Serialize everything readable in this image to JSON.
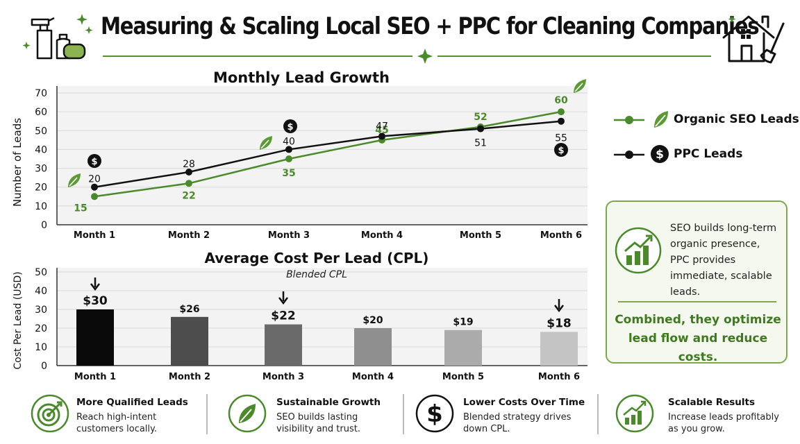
{
  "header": {
    "title": "Measuring & Scaling Local SEO + PPC for Cleaning Companies"
  },
  "chart_data": [
    {
      "type": "line",
      "title": "Monthly Lead Growth",
      "xlabel": "",
      "ylabel": "Number of Leads",
      "categories": [
        "Month 1",
        "Month 2",
        "Month 3",
        "Month 4",
        "Month 5",
        "Month 6"
      ],
      "ylim": [
        0,
        70
      ],
      "yticks": [
        "0",
        "10",
        "20",
        "30",
        "40",
        "50",
        "60",
        "70"
      ],
      "series": [
        {
          "name": "Organic SEO Leads",
          "color": "#4b8a2a",
          "values": [
            15,
            22,
            35,
            45,
            52,
            60
          ]
        },
        {
          "name": "PPC Leads",
          "color": "#111111",
          "values": [
            20,
            28,
            40,
            47,
            51,
            55
          ]
        }
      ],
      "grid": true,
      "legend": "right"
    },
    {
      "type": "bar",
      "title": "Average Cost Per Lead (CPL)",
      "subtitle": "Blended CPL",
      "xlabel": "",
      "ylabel": "Cost Per Lead (USD)",
      "categories": [
        "Month 1",
        "Month 2",
        "Month 3",
        "Month 4",
        "Month 5",
        "Month 6"
      ],
      "values": [
        30,
        26,
        22,
        20,
        19,
        18
      ],
      "labels": [
        "$30",
        "$26",
        "$22",
        "$20",
        "$19",
        "$18"
      ],
      "colors": [
        "#0a0a0a",
        "#4d4d4d",
        "#6a6a6a",
        "#8f8f8f",
        "#ababab",
        "#c4c4c4"
      ],
      "ylim": [
        0,
        50
      ],
      "yticks": [
        "0",
        "10",
        "20",
        "30",
        "40",
        "50"
      ],
      "grid": true
    }
  ],
  "summary": {
    "text": "SEO builds long-term organic presence, PPC provides immediate, scalable leads.",
    "conclusion": "Combined, they optimize lead flow and reduce costs."
  },
  "features": [
    {
      "title": "More Qualified Leads",
      "desc": "Reach high-intent customers locally.",
      "icon": "target-icon"
    },
    {
      "title": "Sustainable Growth",
      "desc": "SEO builds lasting visibility and trust.",
      "icon": "leaf-icon"
    },
    {
      "title": "Lower Costs Over Time",
      "desc": "Blended strategy drives down CPL.",
      "icon": "dollar-icon"
    },
    {
      "title": "Scalable Results",
      "desc": "Increase leads profitably as you grow.",
      "icon": "growth-chart-icon"
    }
  ],
  "dollar_symbol": "$",
  "colors": {
    "green": "#4b8a2a",
    "black": "#111111",
    "panel_border": "#7aa84a"
  }
}
